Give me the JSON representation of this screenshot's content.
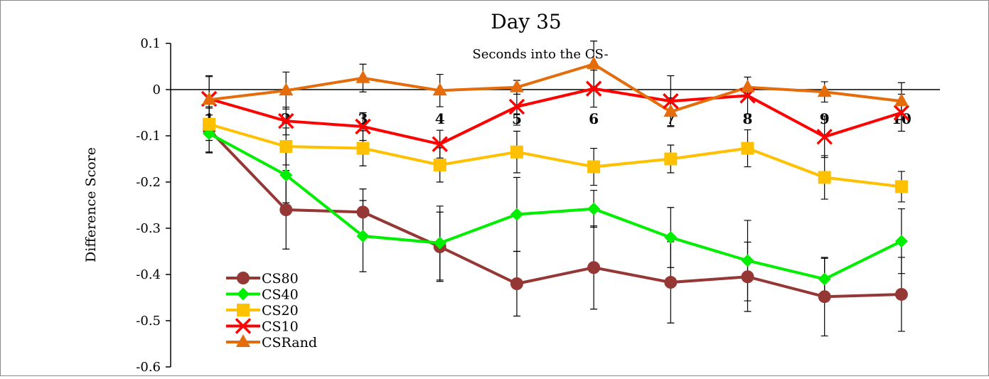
{
  "chart_data": {
    "type": "line",
    "title": "Day 35",
    "x_label": "Seconds into the CS-",
    "y_label": "Difference Score",
    "x": [
      1,
      2,
      3,
      4,
      5,
      6,
      7,
      8,
      9,
      10
    ],
    "xlim": [
      0.5,
      10.5
    ],
    "ylim": [
      -0.6,
      0.1
    ],
    "yticks": [
      0.1,
      0,
      -0.1,
      -0.2,
      -0.3,
      -0.4,
      -0.5,
      -0.6
    ],
    "series": [
      {
        "name": "CS80",
        "color": "#953735",
        "marker": "circle",
        "values": [
          -0.087,
          -0.26,
          -0.265,
          -0.34,
          -0.42,
          -0.385,
          -0.417,
          -0.405,
          -0.448,
          -0.443
        ],
        "errors": [
          0.05,
          0.085,
          0.05,
          0.075,
          0.07,
          0.09,
          0.088,
          0.075,
          0.085,
          0.08
        ]
      },
      {
        "name": "CS40",
        "color": "#00ee00",
        "marker": "diamond",
        "values": [
          -0.095,
          -0.185,
          -0.317,
          -0.332,
          -0.27,
          -0.258,
          -0.32,
          -0.37,
          -0.41,
          -0.328
        ],
        "errors": [
          0.04,
          0.06,
          0.077,
          0.08,
          0.08,
          0.04,
          0.065,
          0.087,
          0.045,
          0.07
        ]
      },
      {
        "name": "CS20",
        "color": "#ffc000",
        "marker": "square",
        "values": [
          -0.075,
          -0.123,
          -0.127,
          -0.163,
          -0.135,
          -0.167,
          -0.15,
          -0.127,
          -0.19,
          -0.21
        ],
        "errors": [
          0.035,
          0.04,
          0.038,
          0.037,
          0.045,
          0.04,
          0.03,
          0.04,
          0.047,
          0.033
        ]
      },
      {
        "name": "CS10",
        "color": "#ff0000",
        "marker": "x",
        "values": [
          -0.02,
          -0.068,
          -0.08,
          -0.118,
          -0.037,
          0.002,
          -0.025,
          -0.013,
          -0.102,
          -0.05
        ],
        "errors": [
          0.05,
          0.03,
          0.03,
          0.03,
          0.04,
          0.04,
          0.055,
          0.04,
          0.045,
          0.04
        ]
      },
      {
        "name": "CSRand",
        "color": "#e46c0a",
        "marker": "triangle",
        "values": [
          -0.022,
          -0.002,
          0.025,
          -0.002,
          0.005,
          0.055,
          -0.048,
          0.005,
          -0.005,
          -0.025
        ],
        "errors": [
          0.05,
          0.04,
          0.03,
          0.035,
          0.015,
          0.05,
          0.03,
          0.022,
          0.022,
          0.04
        ]
      }
    ],
    "legend": "lower left"
  }
}
